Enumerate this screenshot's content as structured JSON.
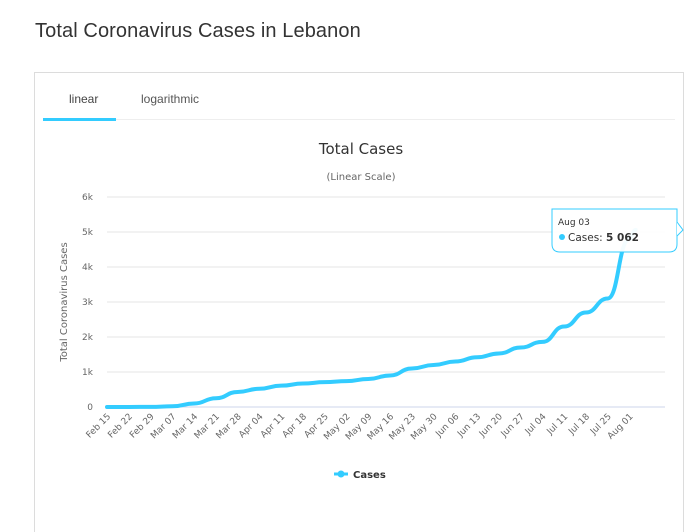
{
  "page": {
    "title": "Total Coronavirus Cases in Lebanon"
  },
  "tabs": [
    {
      "label": "linear",
      "active": true
    },
    {
      "label": "logarithmic",
      "active": false
    }
  ],
  "colors": {
    "series": "#33ccff",
    "grid": "#e6e6e6",
    "tab_active_underline": "#33ccff",
    "tooltip_border": "#33ccff"
  },
  "tooltip": {
    "date": "Aug 03",
    "label": "Cases: ",
    "value": "5 062"
  },
  "legend": {
    "label": "Cases",
    "icon": "line-marker-icon"
  },
  "chart_data": {
    "type": "line",
    "title": "Total Cases",
    "subtitle": "(Linear Scale)",
    "xlabel": "",
    "ylabel": "Total Coronavirus Cases",
    "ylim": [
      0,
      6000
    ],
    "yticks": [
      0,
      1000,
      2000,
      3000,
      4000,
      5000,
      6000
    ],
    "ytick_labels": [
      "0",
      "1k",
      "2k",
      "3k",
      "4k",
      "5k",
      "6k"
    ],
    "grid": true,
    "legend_position": "bottom",
    "x_tick_labels": [
      "Feb 15",
      "Feb 22",
      "Feb 29",
      "Mar 07",
      "Mar 14",
      "Mar 21",
      "Mar 28",
      "Apr 04",
      "Apr 11",
      "Apr 18",
      "Apr 25",
      "May 02",
      "May 09",
      "May 16",
      "May 23",
      "May 30",
      "Jun 06",
      "Jun 13",
      "Jun 20",
      "Jun 27",
      "Jul 04",
      "Jul 11",
      "Jul 18",
      "Jul 25",
      "Aug 01"
    ],
    "series": [
      {
        "name": "Cases",
        "x": [
          "Feb 15",
          "Feb 22",
          "Feb 29",
          "Mar 07",
          "Mar 14",
          "Mar 21",
          "Mar 28",
          "Apr 04",
          "Apr 11",
          "Apr 18",
          "Apr 25",
          "May 02",
          "May 09",
          "May 16",
          "May 23",
          "May 30",
          "Jun 06",
          "Jun 13",
          "Jun 20",
          "Jun 27",
          "Jul 04",
          "Jul 11",
          "Jul 18",
          "Jul 25",
          "Aug 01",
          "Aug 03"
        ],
        "values": [
          0,
          1,
          4,
          20,
          100,
          250,
          430,
          520,
          610,
          670,
          710,
          740,
          800,
          900,
          1100,
          1200,
          1300,
          1420,
          1530,
          1700,
          1860,
          2300,
          2700,
          3100,
          4800,
          5062
        ]
      }
    ]
  }
}
